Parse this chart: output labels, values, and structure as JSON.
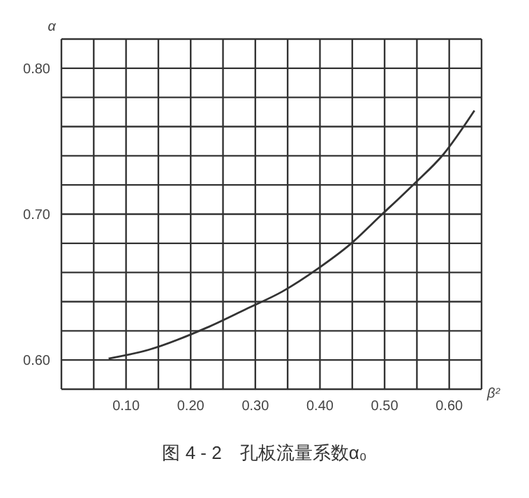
{
  "chart_data": {
    "type": "line",
    "title": "图 4 - 2　孔板流量系数α₀",
    "xlabel": "β²",
    "ylabel": "α",
    "x": [
      0.073,
      0.135,
      0.224,
      0.286,
      0.342,
      0.398,
      0.446,
      0.494,
      0.544,
      0.591,
      0.639
    ],
    "series": [
      {
        "color": "#333333",
        "values": [
          0.601,
          0.607,
          0.622,
          0.635,
          0.647,
          0.663,
          0.679,
          0.699,
          0.72,
          0.741,
          0.771
        ]
      }
    ],
    "xlim": [
      0,
      0.65
    ],
    "xticks": [
      {
        "value": 0.05,
        "label": null
      },
      {
        "value": 0.1,
        "label": "0.10"
      },
      {
        "value": 0.15,
        "label": null
      },
      {
        "value": 0.2,
        "label": "0.20"
      },
      {
        "value": 0.25,
        "label": null
      },
      {
        "value": 0.3,
        "label": "0.30"
      },
      {
        "value": 0.35,
        "label": null
      },
      {
        "value": 0.4,
        "label": "0.40"
      },
      {
        "value": 0.45,
        "label": null
      },
      {
        "value": 0.5,
        "label": "0.50"
      },
      {
        "value": 0.55,
        "label": null
      },
      {
        "value": 0.6,
        "label": "0.60"
      },
      {
        "value": 0.65,
        "label": null
      }
    ],
    "ylim": [
      0.58,
      0.82
    ],
    "yticks": [
      {
        "value": 0.6,
        "label": "0.60"
      },
      {
        "value": 0.62,
        "label": null
      },
      {
        "value": 0.64,
        "label": null
      },
      {
        "value": 0.66,
        "label": null
      },
      {
        "value": 0.68,
        "label": null
      },
      {
        "value": 0.7,
        "label": "0.70"
      },
      {
        "value": 0.72,
        "label": null
      },
      {
        "value": 0.74,
        "label": null
      },
      {
        "value": 0.76,
        "label": null
      },
      {
        "value": 0.78,
        "label": null
      },
      {
        "value": 0.8,
        "label": "0.80"
      },
      {
        "value": 0.82,
        "label": null
      }
    ],
    "grid": true,
    "marker": "none",
    "line_style": "solid"
  }
}
